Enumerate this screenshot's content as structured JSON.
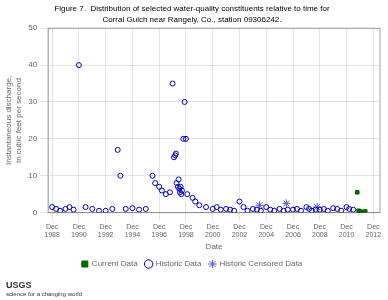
{
  "chart_data": {
    "type": "scatter",
    "title": "Figure 7.  Distribution of selected water-quality constituents relative to time for",
    "subtitle": "Corral Gulch near Rangely, Co., station 09306242.",
    "x_label": "Date",
    "y_label": "Instantaneous discharge,\nin cubic feet per second",
    "xlim": [
      1987.7,
      2012.5
    ],
    "xticks": [
      {
        "value": 1988,
        "label": "Dec\n1988"
      },
      {
        "value": 1990,
        "label": "Dec\n1990"
      },
      {
        "value": 1992,
        "label": "Dec\n1992"
      },
      {
        "value": 1994,
        "label": "Dec\n1994"
      },
      {
        "value": 1996,
        "label": "Dec\n1996"
      },
      {
        "value": 1998,
        "label": "Dec\n1998"
      },
      {
        "value": 2000,
        "label": "Dec\n2000"
      },
      {
        "value": 2002,
        "label": "Dec\n2002"
      },
      {
        "value": 2004,
        "label": "Dec\n2004"
      },
      {
        "value": 2006,
        "label": "Dec\n2006"
      },
      {
        "value": 2008,
        "label": "Dec\n2008"
      },
      {
        "value": 2010,
        "label": "Dec\n2010"
      },
      {
        "value": 2012,
        "label": "Dec\n2012"
      }
    ],
    "ylim": [
      0,
      50
    ],
    "yticks": [
      0,
      10,
      20,
      30,
      40,
      50
    ],
    "grid": true,
    "legend": "bottom",
    "annotations": [
      "USGS",
      "science for a changing world"
    ],
    "series": [
      {
        "name": "Current Data",
        "color": "#006600",
        "marker": "square",
        "x": [
          2010.8,
          2010.9,
          2011.0,
          2011.2,
          2011.4
        ],
        "values": [
          5.5,
          0.5,
          0.3,
          0.2,
          0.3
        ]
      },
      {
        "name": "Historic Data",
        "color": "#0000bb",
        "marker": "open_circle",
        "x": [
          1990.0,
          1992.9,
          1993.1,
          1995.5,
          1995.7,
          1996.0,
          1996.2,
          1996.5,
          1996.8,
          1997.0,
          1997.1,
          1997.2,
          1997.25,
          1997.3,
          1997.4,
          1997.45,
          1997.5,
          1997.55,
          1997.6,
          1997.65,
          1997.7,
          1997.8,
          1997.9,
          1998.0,
          1998.1,
          1988.0,
          1988.3,
          1988.6,
          1989.0,
          1989.3,
          1989.6,
          1990.5,
          1991.0,
          1991.5,
          1992.0,
          1992.5,
          1993.5,
          1994.0,
          1994.5,
          1995.0,
          1998.5,
          1998.7,
          1999.0,
          1999.5,
          2000.0,
          2000.3,
          2000.6,
          2001.0,
          2001.3,
          2001.6,
          2002.0,
          2002.3,
          2002.6,
          2003.0,
          2003.3,
          2003.6,
          2004.0,
          2004.3,
          2004.6,
          2005.0,
          2005.3,
          2005.6,
          2006.0,
          2006.3,
          2006.6,
          2007.0,
          2007.2,
          2007.4,
          2007.7,
          2008.0,
          2008.3,
          2008.6,
          2009.0,
          2009.3,
          2009.6,
          2010.0,
          2010.2,
          2010.5
        ],
        "values": [
          40.0,
          17.0,
          10.0,
          10.0,
          8.0,
          7.0,
          6.0,
          5.0,
          5.5,
          35.0,
          15.0,
          15.5,
          16.0,
          8.0,
          7.0,
          9.0,
          6.5,
          5.5,
          7.0,
          5.0,
          6.0,
          20.0,
          30.0,
          20.0,
          5.0,
          1.5,
          1.0,
          0.5,
          1.0,
          1.5,
          0.8,
          1.5,
          1.0,
          0.5,
          0.5,
          1.0,
          1.0,
          1.2,
          0.8,
          1.0,
          4.0,
          3.0,
          2.0,
          1.5,
          1.0,
          1.5,
          0.8,
          1.0,
          0.8,
          0.5,
          3.0,
          1.5,
          0.5,
          1.0,
          0.8,
          0.5,
          1.5,
          0.8,
          0.5,
          1.0,
          0.5,
          0.8,
          0.8,
          1.0,
          0.5,
          1.5,
          1.0,
          0.5,
          0.8,
          0.8,
          1.0,
          0.5,
          1.2,
          1.0,
          0.5,
          1.5,
          1.0,
          0.8
        ]
      },
      {
        "name": "Historic Censored Data",
        "color": "#5555cc",
        "marker": "star",
        "x": [
          2003.5,
          2005.5,
          2007.8
        ],
        "values": [
          2.0,
          2.5,
          1.5
        ]
      }
    ]
  }
}
